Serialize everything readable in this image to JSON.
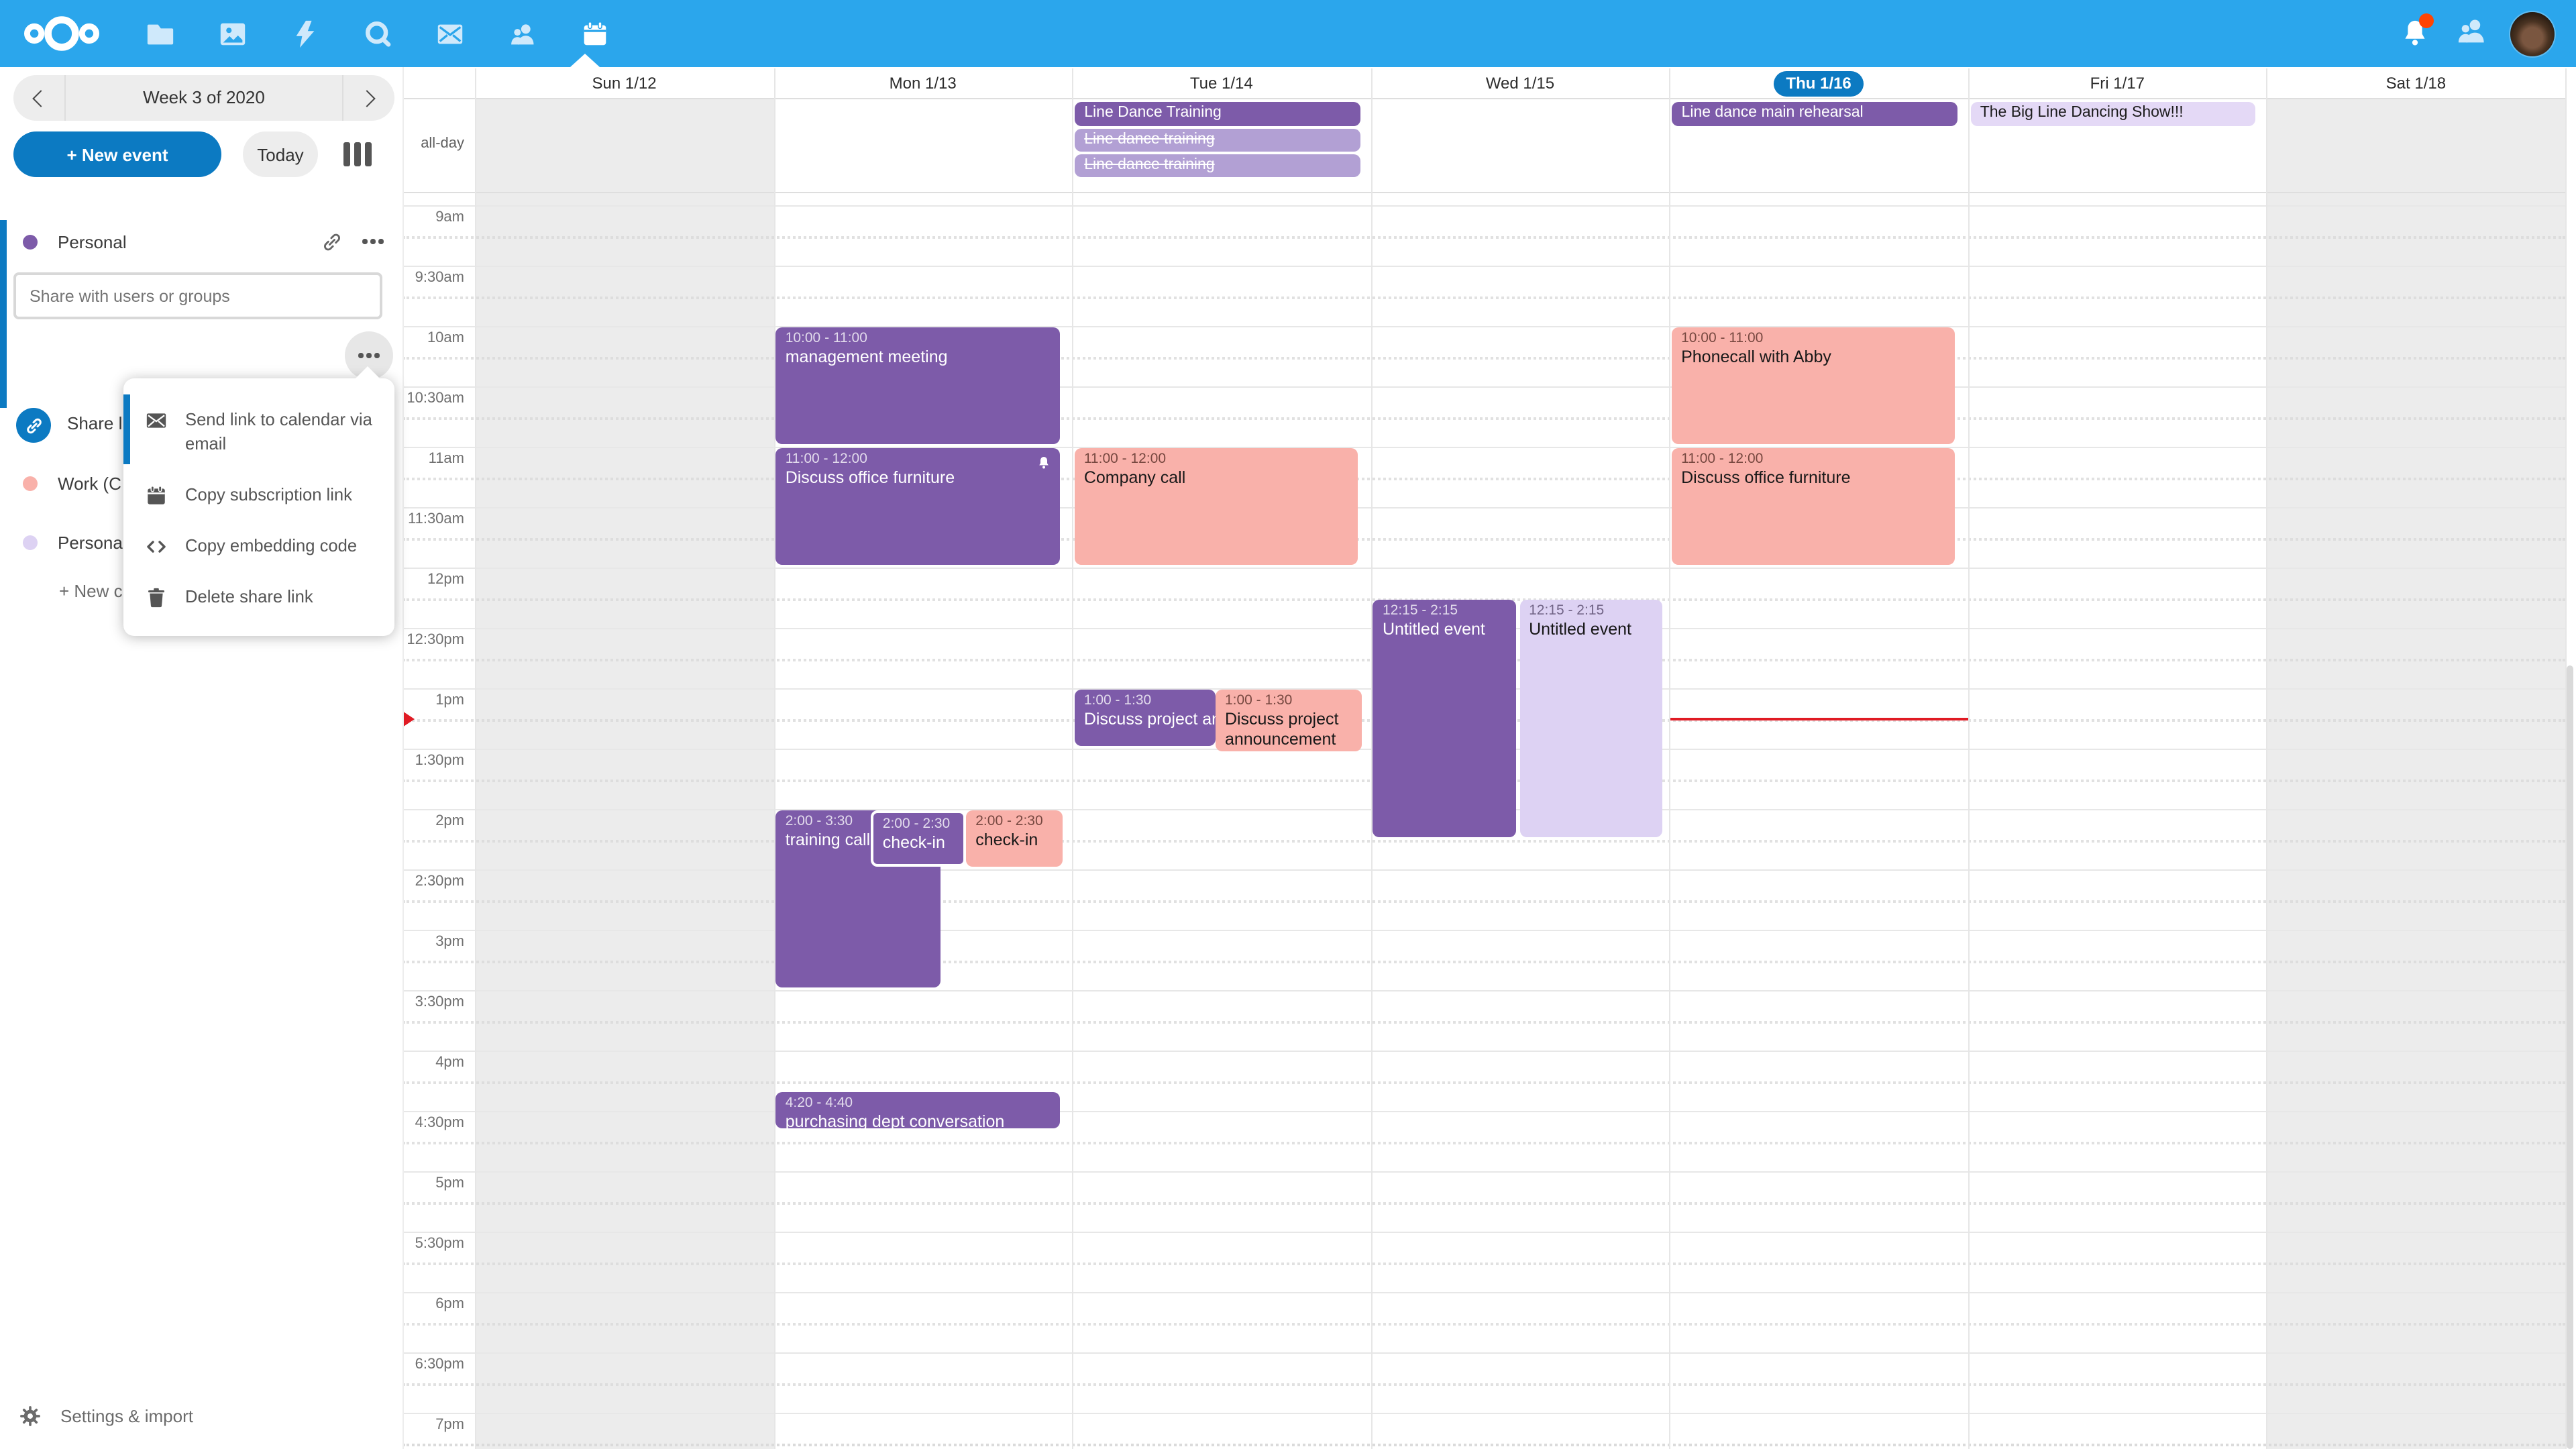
{
  "topbar": {
    "app_icons": [
      "files-icon",
      "photos-icon",
      "activity-icon",
      "talk-icon",
      "mail-icon",
      "contacts-icon",
      "calendar-icon"
    ],
    "active_app": "calendar-icon",
    "has_notification_badge": true
  },
  "week_nav": {
    "label": "Week 3 of 2020"
  },
  "actions": {
    "new_event": "+ New event",
    "today": "Today"
  },
  "calendars": {
    "personal": {
      "name": "Personal",
      "color": "#7d5ba9"
    },
    "share_placeholder": "Share with users or groups",
    "share_link_label": "Share link",
    "others": [
      {
        "name": "Work (C",
        "color": "#f9b1aa"
      },
      {
        "name": "Persona",
        "color": "#ddd2f3"
      }
    ],
    "new_calendar": "+ New c"
  },
  "share_menu": {
    "items": [
      {
        "icon": "envelope-icon",
        "label": "Send link to calendar via email"
      },
      {
        "icon": "calendar-icon",
        "label": "Copy subscription link"
      },
      {
        "icon": "code-icon",
        "label": "Copy embedding code"
      },
      {
        "icon": "trash-icon",
        "label": "Delete share link"
      }
    ]
  },
  "settings_label": "Settings & import",
  "calendar_grid": {
    "day_headers": [
      "Sun 1/12",
      "Mon 1/13",
      "Tue 1/14",
      "Wed 1/15",
      "Thu 1/16",
      "Fri 1/17",
      "Sat 1/18"
    ],
    "today_index": 4,
    "all_day_label": "all-day",
    "time_labels": [
      "9am",
      "9:30am",
      "10am",
      "10:30am",
      "11am",
      "11:30am",
      "12pm",
      "12:30pm",
      "1pm",
      "1:30pm",
      "2pm",
      "2:30pm",
      "3pm",
      "3:30pm",
      "4pm",
      "4:30pm",
      "5pm",
      "5:30pm",
      "6pm",
      "6:30pm",
      "7pm"
    ],
    "weekend_days": [
      0,
      6
    ],
    "now": {
      "day": 4,
      "time": 13.25
    },
    "all_day_events": [
      {
        "day": 2,
        "row": 0,
        "title": "Line Dance Training",
        "style": "purple"
      },
      {
        "day": 2,
        "row": 1,
        "title": "Line dance training",
        "style": "declined"
      },
      {
        "day": 2,
        "row": 2,
        "title": "Line dance training",
        "style": "declined"
      },
      {
        "day": 4,
        "row": 0,
        "title": "Line dance main rehearsal",
        "style": "purple"
      },
      {
        "day": 5,
        "row": 0,
        "title": "The Big Line Dancing Show!!!",
        "style": "lavlight"
      }
    ],
    "events": [
      {
        "day": 1,
        "start": 10,
        "end": 11,
        "time": "10:00 - 11:00",
        "title": "management meeting",
        "style": "purple",
        "l": 0.008,
        "w": 0.95
      },
      {
        "day": 1,
        "start": 11,
        "end": 12,
        "time": "11:00 - 12:00",
        "title": "Discuss office furniture",
        "style": "purple",
        "l": 0.008,
        "w": 0.95,
        "bell": true
      },
      {
        "day": 2,
        "start": 11,
        "end": 12,
        "time": "11:00 - 12:00",
        "title": "Company call",
        "style": "pink",
        "l": 0.008,
        "w": 0.95
      },
      {
        "day": 3,
        "start": 12.25,
        "end": 14.25,
        "time": "12:15 - 2:15",
        "title": "Untitled event",
        "style": "purple",
        "l": 0.008,
        "w": 0.48
      },
      {
        "day": 3,
        "start": 12.25,
        "end": 14.25,
        "time": "12:15 - 2:15",
        "title": "Untitled event",
        "style": "lavender",
        "l": 0.498,
        "w": 0.478
      },
      {
        "day": 4,
        "start": 10,
        "end": 11,
        "time": "10:00 - 11:00",
        "title": "Phonecall with Abby",
        "style": "pink",
        "l": 0.008,
        "w": 0.95
      },
      {
        "day": 4,
        "start": 11,
        "end": 12,
        "time": "11:00 - 12:00",
        "title": "Discuss office furniture",
        "style": "pink",
        "l": 0.008,
        "w": 0.95
      },
      {
        "day": 2,
        "start": 13,
        "end": 13.5,
        "time": "1:00 - 1:30",
        "title": "Discuss project ann",
        "style": "purple",
        "l": 0.008,
        "w": 0.472,
        "nowrap": true
      },
      {
        "day": 2,
        "start": 13,
        "end": 13.5,
        "time": "1:00 - 1:30",
        "title": "Discuss project announcement",
        "style": "pink",
        "l": 0.48,
        "w": 0.49,
        "h": 46
      },
      {
        "day": 1,
        "start": 14,
        "end": 15.5,
        "time": "2:00 - 3:30",
        "title": "training call",
        "style": "purple",
        "l": 0.008,
        "w": 0.553
      },
      {
        "day": 1,
        "start": 14,
        "end": 14.5,
        "time": "2:00 - 2:30",
        "title": "check-in",
        "style": "purple",
        "l": 0.325,
        "w": 0.318,
        "border": true
      },
      {
        "day": 1,
        "start": 14,
        "end": 14.5,
        "time": "2:00 - 2:30",
        "title": "check-in",
        "style": "pink",
        "l": 0.645,
        "w": 0.322
      },
      {
        "day": 1,
        "start": 16.333,
        "end": 16.667,
        "time": "4:20 - 4:40",
        "title": "purchasing dept conversation",
        "style": "purple",
        "l": 0.008,
        "w": 0.95
      }
    ]
  },
  "colors": {
    "header_bg": "#2BA6EC",
    "accent_blue": "#0c7ac2",
    "event_purple": "#7d5ba9",
    "event_pink": "#f9b1aa",
    "event_lavender": "#ddd2f3",
    "event_declined": "#b2a0d4",
    "event_lavender_light": "#e4d9f6",
    "weekend_bg": "#ececec",
    "now_red": "#e01b24"
  }
}
